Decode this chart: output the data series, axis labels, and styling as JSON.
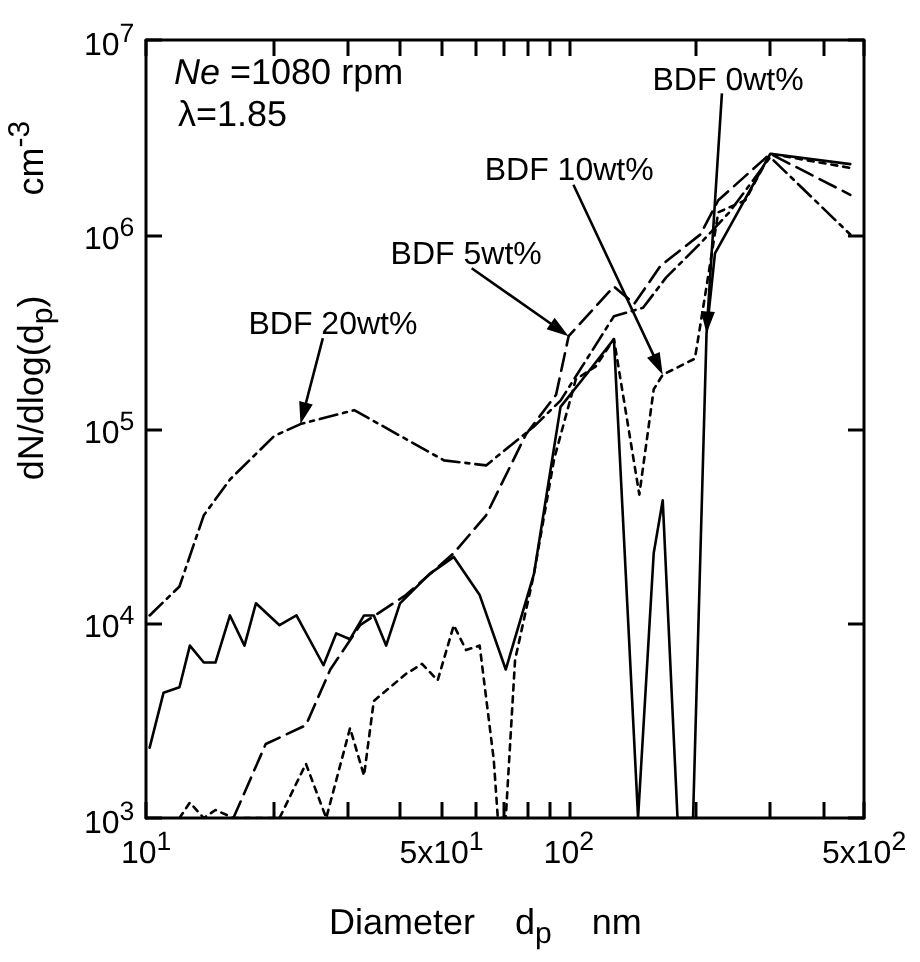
{
  "chart_data": {
    "type": "line",
    "xlabel": "Diameter    d$_{p}$    nm",
    "ylabel": "dN/dlog(d$_{p}$)          cm$^{-3}$",
    "log": "xy",
    "grid": false,
    "marker": "none",
    "xlim": [
      10,
      500
    ],
    "ylim": [
      1000,
      10000000
    ],
    "xticks": [
      {
        "value": 10,
        "label": "10$^{1}$"
      },
      {
        "value": 20,
        "label": null
      },
      {
        "value": 30,
        "label": null
      },
      {
        "value": 40,
        "label": null
      },
      {
        "value": 50,
        "label": "5x10$^{1}$"
      },
      {
        "value": 60,
        "label": null
      },
      {
        "value": 70,
        "label": null
      },
      {
        "value": 80,
        "label": null
      },
      {
        "value": 90,
        "label": null
      },
      {
        "value": 100,
        "label": "10$^{2}$"
      },
      {
        "value": 200,
        "label": null
      },
      {
        "value": 300,
        "label": null
      },
      {
        "value": 400,
        "label": null
      },
      {
        "value": 500,
        "label": "5x10$^{2}$"
      }
    ],
    "yticks": [
      {
        "value": 1000,
        "label": "10$^{3}$"
      },
      {
        "value": 10000,
        "label": "10$^{4}$"
      },
      {
        "value": 100000,
        "label": "10$^{5}$"
      },
      {
        "value": 1000000,
        "label": "10$^{6}$"
      },
      {
        "value": 10000000,
        "label": "10$^{7}$"
      }
    ],
    "series": [
      {
        "color": "#000000",
        "line_style": "solid",
        "x": [
          10.2,
          11,
          12,
          12.7,
          13.7,
          14.6,
          15.8,
          17.1,
          18.2,
          20.7,
          22.7,
          26.3,
          28.2,
          30.4,
          32.8,
          34.6,
          37,
          39.9,
          46.9,
          53.5,
          61.6,
          71,
          82.8,
          95.7,
          110,
          128,
          146,
          159,
          167,
          181,
          197,
          212,
          222,
          300,
          464
        ],
        "values": [
          2300,
          4400,
          4700,
          7700,
          6300,
          6300,
          11000,
          7700,
          12700,
          9800,
          11000,
          6100,
          8900,
          8300,
          11000,
          11000,
          7700,
          12700,
          18000,
          22000,
          14000,
          5800,
          18000,
          130000,
          190000,
          290000,
          1000,
          23000,
          43000,
          1000,
          1000,
          310000,
          800000,
          2600000,
          2300000
        ]
      },
      {
        "color": "#000000",
        "line_style": "dotted",
        "x": [
          12,
          12.7,
          13.7,
          14.6,
          16.1,
          20.7,
          23.9,
          26.7,
          30.4,
          32.8,
          34.6,
          41.2,
          45,
          49,
          53.5,
          57.2,
          61.6,
          66.5,
          68,
          71,
          74.7,
          82.8,
          92.4,
          104,
          116,
          128,
          147,
          159,
          167,
          199,
          212,
          226,
          262,
          300,
          464
        ],
        "values": [
          1000,
          1200,
          1000,
          1100,
          1000,
          1000,
          1900,
          1000,
          2900,
          1650,
          4000,
          5500,
          6200,
          5100,
          9800,
          7300,
          7700,
          2000,
          1000,
          1000,
          6500,
          18000,
          70000,
          180000,
          210000,
          290000,
          46000,
          160000,
          190000,
          230000,
          540000,
          1300000,
          1500000,
          2600000,
          2200000
        ]
      },
      {
        "color": "#000000",
        "line_style": "dashed",
        "x": [
          16.1,
          19.2,
          23.9,
          27.3,
          32.1,
          41.2,
          53.5,
          63.8,
          79.3,
          93.4,
          100,
          128,
          143,
          165,
          205,
          226,
          300,
          464
        ],
        "values": [
          1000,
          2400,
          3000,
          5800,
          9800,
          14000,
          23000,
          36000,
          94000,
          150000,
          300000,
          540000,
          440000,
          690000,
          1000000,
          1500000,
          2600000,
          1600000
        ]
      },
      {
        "color": "#000000",
        "line_style": "dashdot",
        "x": [
          10.2,
          12,
          13.7,
          15.8,
          20.1,
          23.2,
          31.1,
          50.7,
          63.8,
          82.8,
          95.7,
          128,
          150,
          170,
          205,
          240,
          300,
          464
        ],
        "values": [
          11000,
          15500,
          36000,
          55000,
          92000,
          106000,
          125000,
          69000,
          65000,
          103000,
          140000,
          380000,
          420000,
          600000,
          900000,
          1300000,
          2500000,
          1000000
        ]
      }
    ],
    "annotations": [
      "Ne =1080 rpm",
      "λ=1.85",
      "BDF 0wt%",
      "BDF 10wt%",
      {
        "text": "BDF 5wt%",
        "x": 100,
        "y": 300000
      },
      {
        "text": "BDF 20wt%",
        "x": 23.2,
        "y": 106000
      }
    ]
  }
}
